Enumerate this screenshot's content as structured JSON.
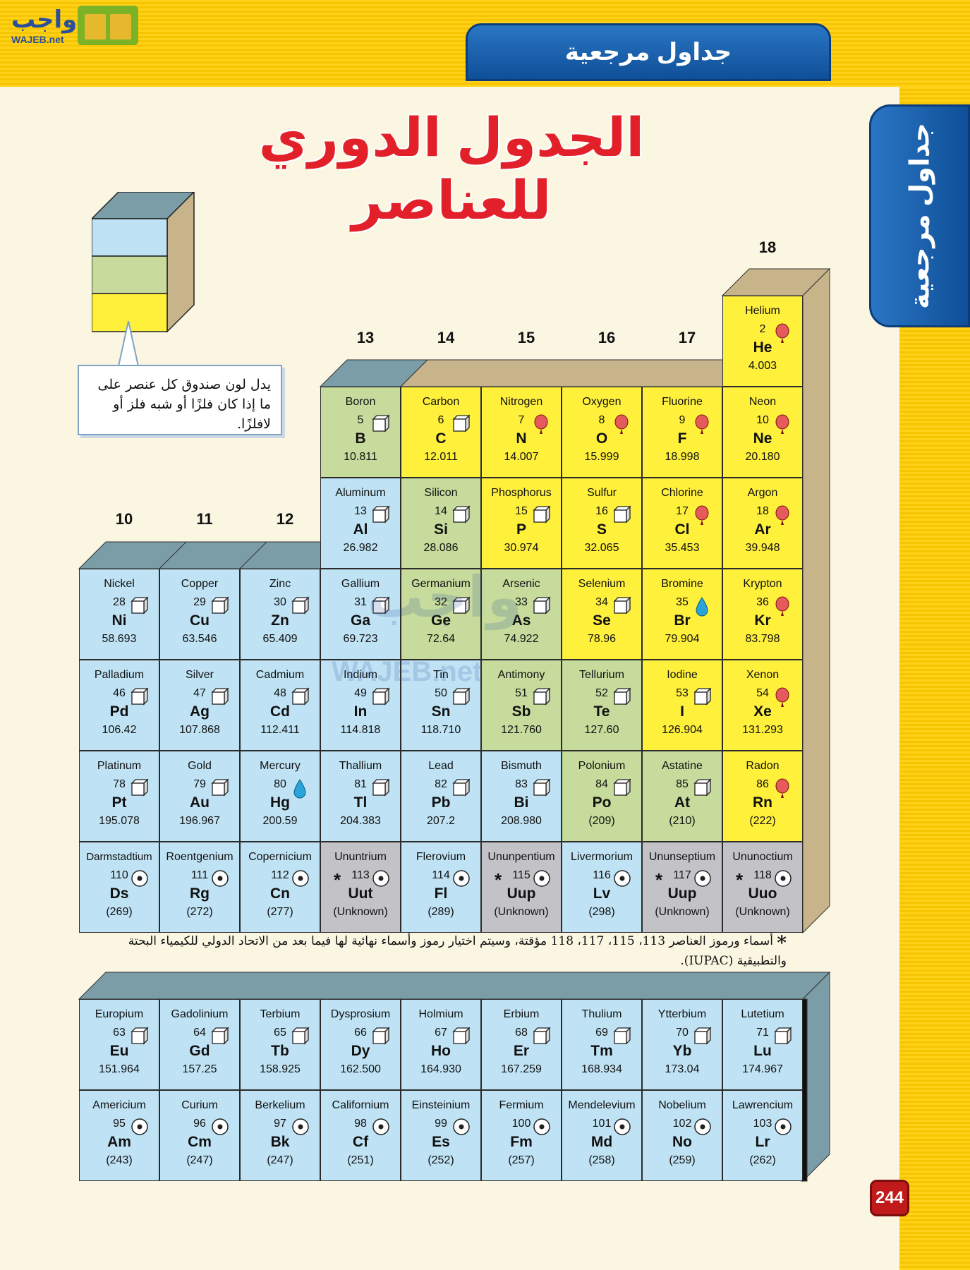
{
  "header": {
    "logo_text": "واجب",
    "logo_subtext": "WAJEB.net",
    "banner": "جداول مرجعية",
    "side_tab": "جداول مرجعية"
  },
  "title": "الجدول الدوري للعناصر",
  "legend": {
    "text": "يدل لون صندوق كل عنصر على ما إذا كان فلزًا أو شبه فلز أو لافلزًا.",
    "colors": {
      "metal": "#bfe3f5",
      "metalloid": "#c6db9c",
      "nonmetal": "#fff03c",
      "unknown": "#c3c2c6"
    }
  },
  "group_numbers": [
    "10",
    "11",
    "12",
    "13",
    "14",
    "15",
    "16",
    "17",
    "18"
  ],
  "elements": [
    {
      "name": "Helium",
      "num": "2",
      "sym": "He",
      "mass": "4.003",
      "cls": "nonmetal",
      "state": "gas"
    },
    {
      "name": "Boron",
      "num": "5",
      "sym": "B",
      "mass": "10.811",
      "cls": "metalloid",
      "state": "solid"
    },
    {
      "name": "Carbon",
      "num": "6",
      "sym": "C",
      "mass": "12.011",
      "cls": "nonmetal",
      "state": "solid"
    },
    {
      "name": "Nitrogen",
      "num": "7",
      "sym": "N",
      "mass": "14.007",
      "cls": "nonmetal",
      "state": "gas"
    },
    {
      "name": "Oxygen",
      "num": "8",
      "sym": "O",
      "mass": "15.999",
      "cls": "nonmetal",
      "state": "gas"
    },
    {
      "name": "Fluorine",
      "num": "9",
      "sym": "F",
      "mass": "18.998",
      "cls": "nonmetal",
      "state": "gas"
    },
    {
      "name": "Neon",
      "num": "10",
      "sym": "Ne",
      "mass": "20.180",
      "cls": "nonmetal",
      "state": "gas"
    },
    {
      "name": "Aluminum",
      "num": "13",
      "sym": "Al",
      "mass": "26.982",
      "cls": "metal",
      "state": "solid"
    },
    {
      "name": "Silicon",
      "num": "14",
      "sym": "Si",
      "mass": "28.086",
      "cls": "metalloid",
      "state": "solid"
    },
    {
      "name": "Phosphorus",
      "num": "15",
      "sym": "P",
      "mass": "30.974",
      "cls": "nonmetal",
      "state": "solid"
    },
    {
      "name": "Sulfur",
      "num": "16",
      "sym": "S",
      "mass": "32.065",
      "cls": "nonmetal",
      "state": "solid"
    },
    {
      "name": "Chlorine",
      "num": "17",
      "sym": "Cl",
      "mass": "35.453",
      "cls": "nonmetal",
      "state": "gas"
    },
    {
      "name": "Argon",
      "num": "18",
      "sym": "Ar",
      "mass": "39.948",
      "cls": "nonmetal",
      "state": "gas"
    },
    {
      "name": "Nickel",
      "num": "28",
      "sym": "Ni",
      "mass": "58.693",
      "cls": "metal",
      "state": "solid"
    },
    {
      "name": "Copper",
      "num": "29",
      "sym": "Cu",
      "mass": "63.546",
      "cls": "metal",
      "state": "solid"
    },
    {
      "name": "Zinc",
      "num": "30",
      "sym": "Zn",
      "mass": "65.409",
      "cls": "metal",
      "state": "solid"
    },
    {
      "name": "Gallium",
      "num": "31",
      "sym": "Ga",
      "mass": "69.723",
      "cls": "metal",
      "state": "solid"
    },
    {
      "name": "Germanium",
      "num": "32",
      "sym": "Ge",
      "mass": "72.64",
      "cls": "metalloid",
      "state": "solid"
    },
    {
      "name": "Arsenic",
      "num": "33",
      "sym": "As",
      "mass": "74.922",
      "cls": "metalloid",
      "state": "solid"
    },
    {
      "name": "Selenium",
      "num": "34",
      "sym": "Se",
      "mass": "78.96",
      "cls": "nonmetal",
      "state": "solid"
    },
    {
      "name": "Bromine",
      "num": "35",
      "sym": "Br",
      "mass": "79.904",
      "cls": "nonmetal",
      "state": "liquid"
    },
    {
      "name": "Krypton",
      "num": "36",
      "sym": "Kr",
      "mass": "83.798",
      "cls": "nonmetal",
      "state": "gas"
    },
    {
      "name": "Palladium",
      "num": "46",
      "sym": "Pd",
      "mass": "106.42",
      "cls": "metal",
      "state": "solid"
    },
    {
      "name": "Silver",
      "num": "47",
      "sym": "Ag",
      "mass": "107.868",
      "cls": "metal",
      "state": "solid"
    },
    {
      "name": "Cadmium",
      "num": "48",
      "sym": "Cd",
      "mass": "112.411",
      "cls": "metal",
      "state": "solid"
    },
    {
      "name": "Indium",
      "num": "49",
      "sym": "In",
      "mass": "114.818",
      "cls": "metal",
      "state": "solid"
    },
    {
      "name": "Tin",
      "num": "50",
      "sym": "Sn",
      "mass": "118.710",
      "cls": "metal",
      "state": "solid"
    },
    {
      "name": "Antimony",
      "num": "51",
      "sym": "Sb",
      "mass": "121.760",
      "cls": "metalloid",
      "state": "solid"
    },
    {
      "name": "Tellurium",
      "num": "52",
      "sym": "Te",
      "mass": "127.60",
      "cls": "metalloid",
      "state": "solid"
    },
    {
      "name": "Iodine",
      "num": "53",
      "sym": "I",
      "mass": "126.904",
      "cls": "nonmetal",
      "state": "solid"
    },
    {
      "name": "Xenon",
      "num": "54",
      "sym": "Xe",
      "mass": "131.293",
      "cls": "nonmetal",
      "state": "gas"
    },
    {
      "name": "Platinum",
      "num": "78",
      "sym": "Pt",
      "mass": "195.078",
      "cls": "metal",
      "state": "solid"
    },
    {
      "name": "Gold",
      "num": "79",
      "sym": "Au",
      "mass": "196.967",
      "cls": "metal",
      "state": "solid"
    },
    {
      "name": "Mercury",
      "num": "80",
      "sym": "Hg",
      "mass": "200.59",
      "cls": "metal",
      "state": "liquid"
    },
    {
      "name": "Thallium",
      "num": "81",
      "sym": "Tl",
      "mass": "204.383",
      "cls": "metal",
      "state": "solid"
    },
    {
      "name": "Lead",
      "num": "82",
      "sym": "Pb",
      "mass": "207.2",
      "cls": "metal",
      "state": "solid"
    },
    {
      "name": "Bismuth",
      "num": "83",
      "sym": "Bi",
      "mass": "208.980",
      "cls": "metal",
      "state": "solid"
    },
    {
      "name": "Polonium",
      "num": "84",
      "sym": "Po",
      "mass": "(209)",
      "cls": "metalloid",
      "state": "solid"
    },
    {
      "name": "Astatine",
      "num": "85",
      "sym": "At",
      "mass": "(210)",
      "cls": "metalloid",
      "state": "solid"
    },
    {
      "name": "Radon",
      "num": "86",
      "sym": "Rn",
      "mass": "(222)",
      "cls": "nonmetal",
      "state": "gas"
    },
    {
      "name": "Darmstadtium",
      "num": "110",
      "sym": "Ds",
      "mass": "(269)",
      "cls": "metal",
      "state": "synthetic"
    },
    {
      "name": "Roentgenium",
      "num": "111",
      "sym": "Rg",
      "mass": "(272)",
      "cls": "metal",
      "state": "synthetic"
    },
    {
      "name": "Copernicium",
      "num": "112",
      "sym": "Cn",
      "mass": "(277)",
      "cls": "metal",
      "state": "synthetic"
    },
    {
      "name": "Ununtrium",
      "num": "113",
      "sym": "Uut",
      "mass": "(Unknown)",
      "cls": "unknown",
      "state": "synthetic",
      "star": "*"
    },
    {
      "name": "Flerovium",
      "num": "114",
      "sym": "Fl",
      "mass": "(289)",
      "cls": "metal",
      "state": "synthetic"
    },
    {
      "name": "Ununpentium",
      "num": "115",
      "sym": "Uup",
      "mass": "(Unknown)",
      "cls": "unknown",
      "state": "synthetic",
      "star": "*"
    },
    {
      "name": "Livermorium",
      "num": "116",
      "sym": "Lv",
      "mass": "(298)",
      "cls": "metal",
      "state": "synthetic"
    },
    {
      "name": "Ununseptium",
      "num": "117",
      "sym": "Uup",
      "mass": "(Unknown)",
      "cls": "unknown",
      "state": "synthetic",
      "star": "*"
    },
    {
      "name": "Ununoctium",
      "num": "118",
      "sym": "Uuo",
      "mass": "(Unknown)",
      "cls": "unknown",
      "state": "synthetic",
      "star": "*"
    },
    {
      "name": "Europium",
      "num": "63",
      "sym": "Eu",
      "mass": "151.964",
      "cls": "metal",
      "state": "solid"
    },
    {
      "name": "Gadolinium",
      "num": "64",
      "sym": "Gd",
      "mass": "157.25",
      "cls": "metal",
      "state": "solid"
    },
    {
      "name": "Terbium",
      "num": "65",
      "sym": "Tb",
      "mass": "158.925",
      "cls": "metal",
      "state": "solid"
    },
    {
      "name": "Dysprosium",
      "num": "66",
      "sym": "Dy",
      "mass": "162.500",
      "cls": "metal",
      "state": "solid"
    },
    {
      "name": "Holmium",
      "num": "67",
      "sym": "Ho",
      "mass": "164.930",
      "cls": "metal",
      "state": "solid"
    },
    {
      "name": "Erbium",
      "num": "68",
      "sym": "Er",
      "mass": "167.259",
      "cls": "metal",
      "state": "solid"
    },
    {
      "name": "Thulium",
      "num": "69",
      "sym": "Tm",
      "mass": "168.934",
      "cls": "metal",
      "state": "solid"
    },
    {
      "name": "Ytterbium",
      "num": "70",
      "sym": "Yb",
      "mass": "173.04",
      "cls": "metal",
      "state": "solid"
    },
    {
      "name": "Lutetium",
      "num": "71",
      "sym": "Lu",
      "mass": "174.967",
      "cls": "metal",
      "state": "solid"
    },
    {
      "name": "Americium",
      "num": "95",
      "sym": "Am",
      "mass": "(243)",
      "cls": "metal",
      "state": "synthetic"
    },
    {
      "name": "Curium",
      "num": "96",
      "sym": "Cm",
      "mass": "(247)",
      "cls": "metal",
      "state": "synthetic"
    },
    {
      "name": "Berkelium",
      "num": "97",
      "sym": "Bk",
      "mass": "(247)",
      "cls": "metal",
      "state": "synthetic"
    },
    {
      "name": "Californium",
      "num": "98",
      "sym": "Cf",
      "mass": "(251)",
      "cls": "metal",
      "state": "synthetic"
    },
    {
      "name": "Einsteinium",
      "num": "99",
      "sym": "Es",
      "mass": "(252)",
      "cls": "metal",
      "state": "synthetic"
    },
    {
      "name": "Fermium",
      "num": "100",
      "sym": "Fm",
      "mass": "(257)",
      "cls": "metal",
      "state": "synthetic"
    },
    {
      "name": "Mendelevium",
      "num": "101",
      "sym": "Md",
      "mass": "(258)",
      "cls": "metal",
      "state": "synthetic"
    },
    {
      "name": "Nobelium",
      "num": "102",
      "sym": "No",
      "mass": "(259)",
      "cls": "metal",
      "state": "synthetic"
    },
    {
      "name": "Lawrencium",
      "num": "103",
      "sym": "Lr",
      "mass": "(262)",
      "cls": "metal",
      "state": "synthetic"
    }
  ],
  "footnote": {
    "star": "*",
    "text": "أسماء ورموز العناصر 113، 115، 117، 118 مؤقتة، وسيتم اختيار رموز وأسماء نهائية لها فيما بعد من الاتحاد الدولي للكيمياء البحتة والتطبيقية (IUPAC)."
  },
  "page_number": "244",
  "watermark": {
    "text": "واجب",
    "subtext": "WAJEB.net"
  }
}
